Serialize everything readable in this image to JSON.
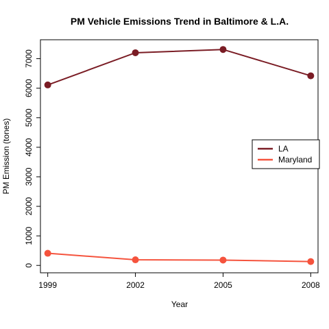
{
  "chart_data": {
    "type": "line",
    "title": "PM Vehicle Emissions Trend in Baltimore & L.A.",
    "xlabel": "Year",
    "ylabel": "PM Emission (tones)",
    "x": [
      1999,
      2002,
      2005,
      2008
    ],
    "x_ticks": [
      "1999",
      "2002",
      "2005",
      "2008"
    ],
    "y_ticks": [
      "0",
      "1000",
      "2000",
      "3000",
      "4000",
      "5000",
      "6000",
      "7000"
    ],
    "ylim": [
      -250,
      7640
    ],
    "xlim": [
      1998.75,
      2008.25
    ],
    "legend_placement": "right",
    "grid": false,
    "series": [
      {
        "name": "LA",
        "color": "#7a1c24",
        "values": [
          6110,
          7200,
          7310,
          6420
        ]
      },
      {
        "name": "Maryland",
        "color": "#f5533d",
        "values": [
          410,
          190,
          180,
          130
        ]
      }
    ]
  }
}
